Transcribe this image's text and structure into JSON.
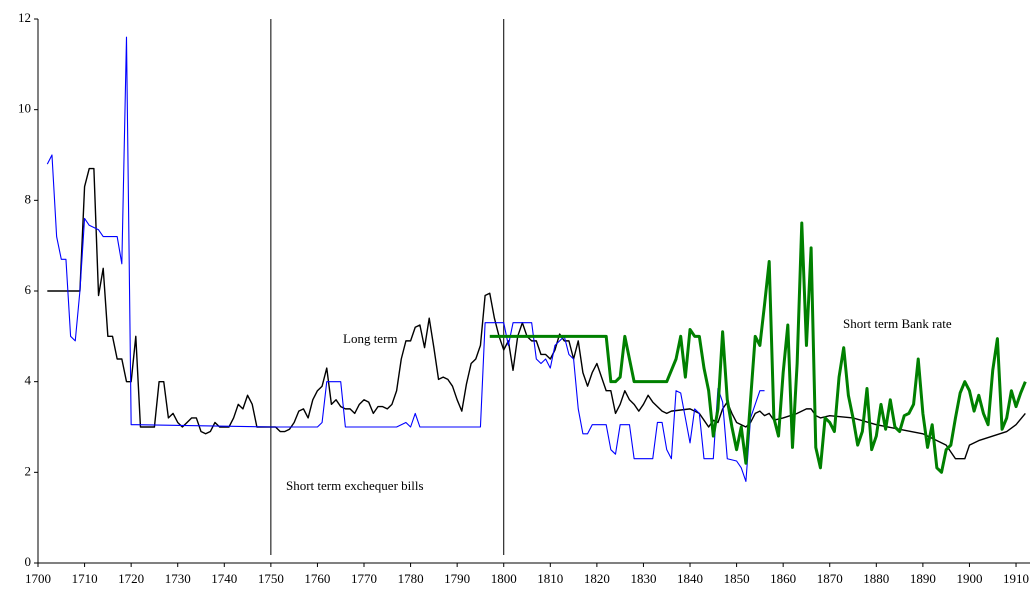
{
  "chart_data": {
    "type": "line",
    "xlim": [
      1700,
      1913
    ],
    "ylim": [
      0,
      12
    ],
    "xticks": [
      1700,
      1710,
      1720,
      1730,
      1740,
      1750,
      1760,
      1770,
      1780,
      1790,
      1800,
      1810,
      1820,
      1830,
      1840,
      1850,
      1860,
      1870,
      1880,
      1890,
      1900,
      1910
    ],
    "yticks": [
      0,
      2,
      4,
      6,
      8,
      10,
      12
    ],
    "grid": false,
    "vlines": [
      1750,
      1800
    ],
    "annotations": [
      "Long term",
      "Short term Bank rate",
      "Short term exchequer bills"
    ],
    "series": [
      {
        "color": "#000000",
        "width": 1.4,
        "x": [
          1702,
          1709,
          1710,
          1711,
          1712,
          1713,
          1714,
          1715,
          1716,
          1717,
          1718,
          1719,
          1720,
          1721,
          1722,
          1725,
          1726,
          1727,
          1728,
          1729,
          1730,
          1731,
          1732,
          1733,
          1734,
          1735,
          1736,
          1737,
          1738,
          1739,
          1740,
          1741,
          1742,
          1743,
          1744,
          1745,
          1746,
          1747,
          1750,
          1751,
          1752,
          1753,
          1754,
          1755,
          1756,
          1757,
          1758,
          1759,
          1760,
          1761,
          1762,
          1763,
          1764,
          1765,
          1766,
          1767,
          1768,
          1769,
          1770,
          1771,
          1772,
          1773,
          1774,
          1775,
          1776,
          1777,
          1778,
          1779,
          1780,
          1781,
          1782,
          1783,
          1784,
          1785,
          1786,
          1787,
          1788,
          1789,
          1790,
          1791,
          1792,
          1793,
          1794,
          1795,
          1796,
          1797,
          1798,
          1799,
          1800,
          1801,
          1802,
          1803,
          1804,
          1805,
          1806,
          1807,
          1808,
          1809,
          1810,
          1811,
          1812,
          1813,
          1814,
          1815,
          1816,
          1817,
          1818,
          1819,
          1820,
          1821,
          1822,
          1823,
          1824,
          1825,
          1826,
          1827,
          1828,
          1829,
          1830,
          1831,
          1832,
          1833,
          1834,
          1835,
          1836,
          1840,
          1841,
          1842,
          1843,
          1844,
          1845,
          1846,
          1847,
          1848,
          1849,
          1850,
          1852,
          1853,
          1854,
          1855,
          1856,
          1857,
          1858,
          1860,
          1863,
          1864,
          1865,
          1866,
          1867,
          1868,
          1870,
          1875,
          1880,
          1885,
          1890,
          1895,
          1897,
          1899,
          1900,
          1902,
          1905,
          1908,
          1910,
          1912
        ],
        "values": [
          6.0,
          6.0,
          8.3,
          8.7,
          8.7,
          5.9,
          6.5,
          5.0,
          5.0,
          4.5,
          4.5,
          4.0,
          4.0,
          5.0,
          3.0,
          3.0,
          4.0,
          4.0,
          3.2,
          3.3,
          3.1,
          3.0,
          3.1,
          3.2,
          3.2,
          2.9,
          2.85,
          2.9,
          3.1,
          3.0,
          3.0,
          3.0,
          3.2,
          3.5,
          3.4,
          3.7,
          3.5,
          3.0,
          3.0,
          3.0,
          2.9,
          2.9,
          2.95,
          3.1,
          3.35,
          3.4,
          3.2,
          3.6,
          3.8,
          3.9,
          4.3,
          3.5,
          3.6,
          3.45,
          3.4,
          3.4,
          3.3,
          3.5,
          3.6,
          3.55,
          3.3,
          3.45,
          3.45,
          3.4,
          3.5,
          3.8,
          4.5,
          4.9,
          4.9,
          5.2,
          5.25,
          4.75,
          5.4,
          4.75,
          4.05,
          4.1,
          4.05,
          3.9,
          3.6,
          3.35,
          3.95,
          4.4,
          4.5,
          4.8,
          5.9,
          5.95,
          5.4,
          5.0,
          4.7,
          4.9,
          4.25,
          5.0,
          5.3,
          5.0,
          4.9,
          4.9,
          4.6,
          4.6,
          4.5,
          4.7,
          5.05,
          4.9,
          4.9,
          4.5,
          4.9,
          4.2,
          3.9,
          4.2,
          4.4,
          4.1,
          3.8,
          3.8,
          3.3,
          3.5,
          3.8,
          3.6,
          3.5,
          3.35,
          3.5,
          3.7,
          3.55,
          3.45,
          3.35,
          3.3,
          3.35,
          3.4,
          3.35,
          3.3,
          3.15,
          3.0,
          3.15,
          3.1,
          3.4,
          3.55,
          3.3,
          3.1,
          3.0,
          3.1,
          3.3,
          3.35,
          3.25,
          3.3,
          3.15,
          3.2,
          3.3,
          3.35,
          3.4,
          3.4,
          3.25,
          3.2,
          3.25,
          3.2,
          3.05,
          2.95,
          2.85,
          2.6,
          2.3,
          2.3,
          2.6,
          2.7,
          2.8,
          2.9,
          3.05,
          3.3
        ]
      },
      {
        "color": "#0000ff",
        "width": 1.1,
        "x": [
          1702,
          1703,
          1704,
          1705,
          1706,
          1707,
          1708,
          1709,
          1710,
          1711,
          1712,
          1713,
          1714,
          1717,
          1718,
          1719,
          1720,
          1721,
          1750,
          1760,
          1761,
          1762,
          1765,
          1766,
          1777,
          1779,
          1780,
          1781,
          1782,
          1795,
          1796,
          1800,
          1801,
          1802,
          1806,
          1807,
          1808,
          1809,
          1810,
          1811,
          1812,
          1813,
          1814,
          1815,
          1816,
          1817,
          1818,
          1819,
          1822,
          1823,
          1824,
          1825,
          1827,
          1828,
          1832,
          1833,
          1834,
          1835,
          1836,
          1837,
          1838,
          1839,
          1840,
          1841,
          1842,
          1843,
          1845,
          1846,
          1847,
          1848,
          1850,
          1851,
          1852,
          1853,
          1854,
          1855,
          1856
        ],
        "values": [
          8.8,
          9.0,
          7.2,
          6.7,
          6.7,
          5.0,
          4.9,
          6.0,
          7.6,
          7.45,
          7.4,
          7.35,
          7.2,
          7.2,
          6.6,
          11.6,
          3.05,
          3.05,
          3.0,
          3.0,
          3.1,
          4.0,
          4.0,
          3.0,
          3.0,
          3.1,
          3.0,
          3.3,
          3.0,
          3.0,
          5.3,
          5.3,
          4.8,
          5.3,
          5.3,
          4.5,
          4.4,
          4.5,
          4.3,
          4.8,
          4.9,
          5.0,
          4.6,
          4.5,
          3.4,
          2.85,
          2.85,
          3.05,
          3.05,
          2.5,
          2.4,
          3.05,
          3.05,
          2.3,
          2.3,
          3.1,
          3.1,
          2.5,
          2.3,
          3.8,
          3.75,
          3.2,
          2.65,
          3.4,
          3.3,
          2.3,
          2.3,
          3.85,
          3.55,
          2.3,
          2.25,
          2.1,
          1.8,
          3.2,
          3.5,
          3.8,
          3.8
        ]
      },
      {
        "color": "#008000",
        "width": 3,
        "x": [
          1797,
          1822,
          1823,
          1824,
          1825,
          1826,
          1827,
          1828,
          1835,
          1837,
          1838,
          1839,
          1840,
          1841,
          1842,
          1843,
          1844,
          1845,
          1846,
          1847,
          1848,
          1849,
          1850,
          1851,
          1852,
          1853,
          1854,
          1855,
          1856,
          1857,
          1858,
          1859,
          1860,
          1861,
          1862,
          1863,
          1864,
          1865,
          1866,
          1867,
          1868,
          1869,
          1870,
          1871,
          1872,
          1873,
          1874,
          1875,
          1876,
          1877,
          1878,
          1879,
          1880,
          1881,
          1882,
          1883,
          1884,
          1885,
          1886,
          1887,
          1888,
          1889,
          1890,
          1891,
          1892,
          1893,
          1894,
          1895,
          1896,
          1897,
          1898,
          1899,
          1900,
          1901,
          1902,
          1903,
          1904,
          1905,
          1906,
          1907,
          1908,
          1909,
          1910,
          1911,
          1912
        ],
        "values": [
          5.0,
          5.0,
          4.0,
          4.0,
          4.1,
          5.0,
          4.5,
          4.0,
          4.0,
          4.5,
          5.0,
          4.1,
          5.15,
          5.0,
          5.0,
          4.3,
          3.8,
          2.8,
          3.4,
          5.1,
          3.6,
          3.0,
          2.5,
          3.0,
          2.2,
          3.6,
          5.0,
          4.8,
          5.7,
          6.65,
          3.2,
          2.8,
          4.2,
          5.25,
          2.55,
          4.4,
          7.5,
          4.8,
          6.95,
          2.55,
          2.1,
          3.2,
          3.1,
          2.9,
          4.1,
          4.75,
          3.7,
          3.2,
          2.6,
          2.9,
          3.85,
          2.5,
          2.8,
          3.5,
          2.95,
          3.6,
          3.0,
          2.9,
          3.25,
          3.3,
          3.5,
          4.5,
          3.3,
          2.55,
          3.05,
          2.1,
          2.0,
          2.5,
          2.6,
          3.2,
          3.75,
          4.0,
          3.8,
          3.35,
          3.7,
          3.3,
          3.05,
          4.25,
          4.95,
          2.95,
          3.2,
          3.8,
          3.45,
          3.75,
          4.0
        ]
      }
    ]
  }
}
